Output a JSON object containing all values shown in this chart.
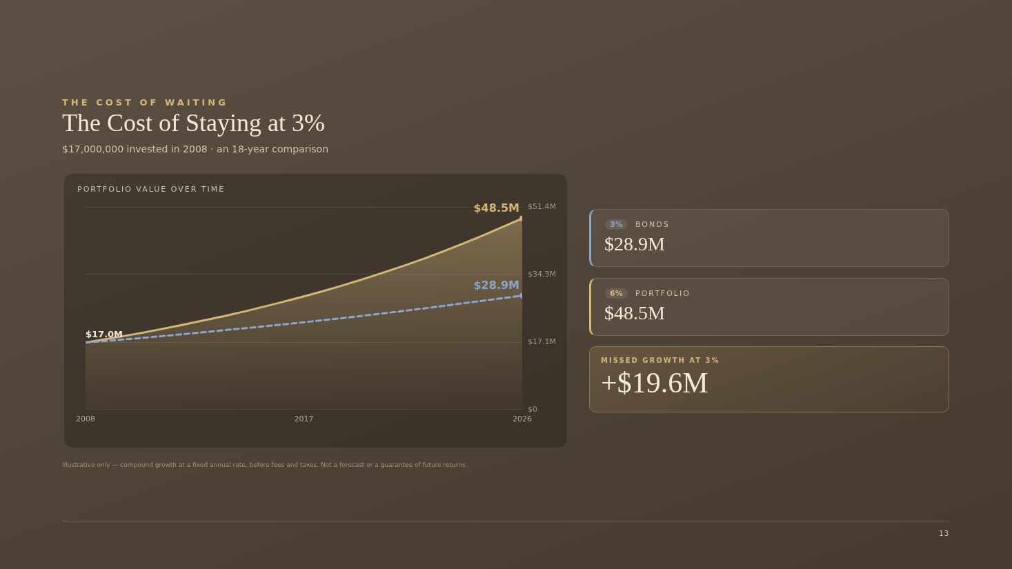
{
  "chart_data": [
    {
      "type": "line",
      "title": "The Cost of Staying at 3%",
      "subtitle": "$17,000,000 invested in 2008 · an 18-year comparison",
      "annotations": [
        "THE COST OF WAITING",
        "PORTFOLIO VALUE OVER TIME",
        "Illustrative only — compound growth at a fixed annual rate, before fees and taxes. Not a forecast or a guarantee of future returns.",
        "13"
      ],
      "x": [
        2008,
        2010,
        2012,
        2014,
        2016,
        2018,
        2020,
        2022,
        2024,
        2026
      ],
      "series": [
        {
          "type": "area",
          "color": "#d4b67a",
          "values": [
            17.0,
            19.1,
            21.5,
            24.1,
            27.1,
            30.4,
            34.2,
            38.4,
            43.2,
            48.5
          ],
          "value_labels": [
            "$17.0M",
            null,
            null,
            null,
            null,
            null,
            null,
            null,
            null,
            "$48.5M"
          ]
        },
        {
          "type": "line",
          "color": "#8ea4cc",
          "line_style": "dashed",
          "values": [
            17.0,
            18.0,
            19.1,
            20.3,
            21.5,
            22.8,
            24.2,
            25.7,
            27.3,
            28.9
          ],
          "value_labels": [
            null,
            null,
            null,
            null,
            null,
            null,
            null,
            null,
            null,
            "$28.9M"
          ]
        }
      ],
      "xlim": [
        2008,
        2026
      ],
      "xticks": [
        2008,
        2017,
        2026
      ],
      "ylim": [
        0,
        51.4
      ],
      "yticks": [
        {
          "value": 0,
          "label": "$0"
        },
        {
          "value": 17.1,
          "label": "$17.1M"
        },
        {
          "value": 34.3,
          "label": "$34.3M"
        },
        {
          "value": 51.4,
          "label": "$51.4M"
        }
      ],
      "grid": "y",
      "legend": false
    },
    {
      "type": "other",
      "annotations": [
        "3%",
        "BONDS",
        "$28.9M",
        "6%",
        "PORTFOLIO",
        "$48.5M",
        "MISSED GROWTH AT 3%",
        "+$19.6M"
      ]
    }
  ]
}
